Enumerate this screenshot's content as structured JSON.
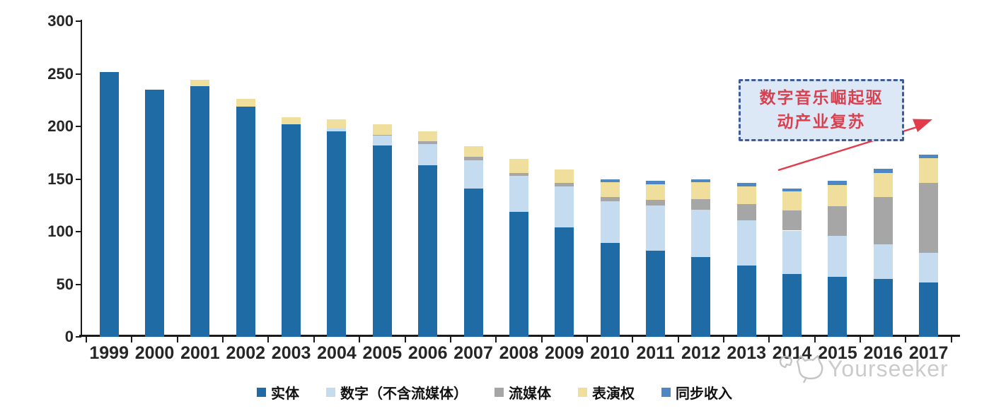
{
  "chart_data": {
    "type": "bar",
    "stacked": true,
    "categories": [
      "1999",
      "2000",
      "2001",
      "2002",
      "2003",
      "2004",
      "2005",
      "2006",
      "2007",
      "2008",
      "2009",
      "2010",
      "2011",
      "2012",
      "2013",
      "2014",
      "2015",
      "2016",
      "2017"
    ],
    "series": [
      {
        "name": "实体",
        "color": "#1F6BA5",
        "values": [
          252,
          235,
          238,
          219,
          202,
          195,
          182,
          163,
          141,
          119,
          104,
          89,
          82,
          76,
          68,
          60,
          57,
          55,
          52
        ]
      },
      {
        "name": "数字（不含流媒体）",
        "color": "#C5DCF0",
        "values": [
          0,
          0,
          0,
          0,
          0,
          3,
          9,
          20,
          27,
          34,
          39,
          40,
          43,
          45,
          43,
          41,
          39,
          33,
          28
        ]
      },
      {
        "name": "流媒体",
        "color": "#A6A6A6",
        "values": [
          0,
          0,
          0,
          0,
          0,
          0,
          1,
          3,
          3,
          3,
          3,
          4,
          5,
          10,
          15,
          19,
          28,
          45,
          66
        ]
      },
      {
        "name": "表演权",
        "color": "#F0DE9C",
        "values": [
          0,
          0,
          6,
          7,
          7,
          9,
          10,
          9,
          10,
          13,
          13,
          14,
          15,
          16,
          17,
          18,
          20,
          23,
          24
        ]
      },
      {
        "name": "同步收入",
        "color": "#4D88C4",
        "values": [
          0,
          0,
          0,
          0,
          0,
          0,
          0,
          0,
          0,
          0,
          0,
          3,
          3,
          3,
          3,
          3,
          4,
          4,
          3
        ]
      }
    ],
    "ylim": [
      0,
      300
    ],
    "yticks": [
      0,
      50,
      100,
      150,
      200,
      250,
      300
    ],
    "xlabel": "",
    "ylabel": "",
    "title": "",
    "grid": false,
    "legend_position": "bottom"
  },
  "annotation": {
    "line1": "数字音乐崛起驱",
    "line2": "动产业复苏",
    "text_color": "#d94150",
    "box_fill": "#dce8f6",
    "box_border": "#3f5c96",
    "arrow_color": "#e23b4a"
  },
  "watermark": {
    "text": "Yourseeker"
  }
}
